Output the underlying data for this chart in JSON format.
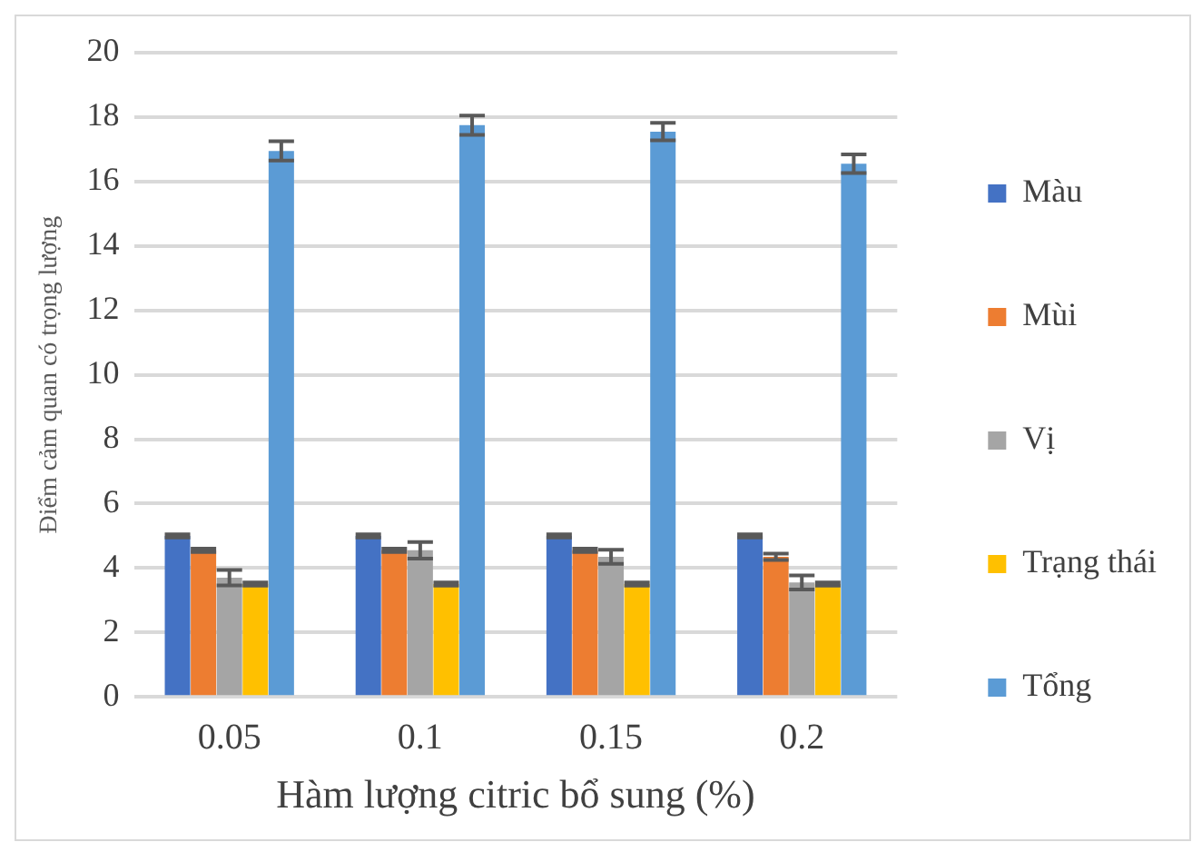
{
  "chart_data": {
    "type": "bar",
    "xlabel": "Hàm lượng citric bổ sung (%)",
    "ylabel": "Điểm cảm quan có trọng lượng",
    "categories": [
      "0.05",
      "0.1",
      "0.15",
      "0.2"
    ],
    "series": [
      {
        "name": "Màu",
        "color": "#4472c4",
        "values": [
          5.0,
          5.0,
          5.0,
          5.0
        ],
        "errors": [
          0.05,
          0.05,
          0.05,
          0.05
        ]
      },
      {
        "name": "Mùi",
        "color": "#ed7d31",
        "values": [
          4.55,
          4.55,
          4.55,
          4.35
        ],
        "errors": [
          0.05,
          0.05,
          0.05,
          0.1
        ]
      },
      {
        "name": "Vị",
        "color": "#a5a5a5",
        "values": [
          3.7,
          4.55,
          4.35,
          3.55
        ],
        "errors": [
          0.24,
          0.26,
          0.22,
          0.22
        ]
      },
      {
        "name": "Trạng thái",
        "color": "#ffc000",
        "values": [
          3.5,
          3.5,
          3.5,
          3.5
        ],
        "errors": [
          0.05,
          0.05,
          0.05,
          0.05
        ]
      },
      {
        "name": "Tổng",
        "color": "#5b9bd5",
        "values": [
          16.95,
          17.75,
          17.55,
          16.55
        ],
        "errors": [
          0.3,
          0.3,
          0.27,
          0.29
        ]
      }
    ],
    "ylim": [
      0,
      20
    ],
    "yticks": [
      0,
      2,
      4,
      6,
      8,
      10,
      12,
      14,
      16,
      18,
      20
    ],
    "grid": "y",
    "legend": "right"
  }
}
